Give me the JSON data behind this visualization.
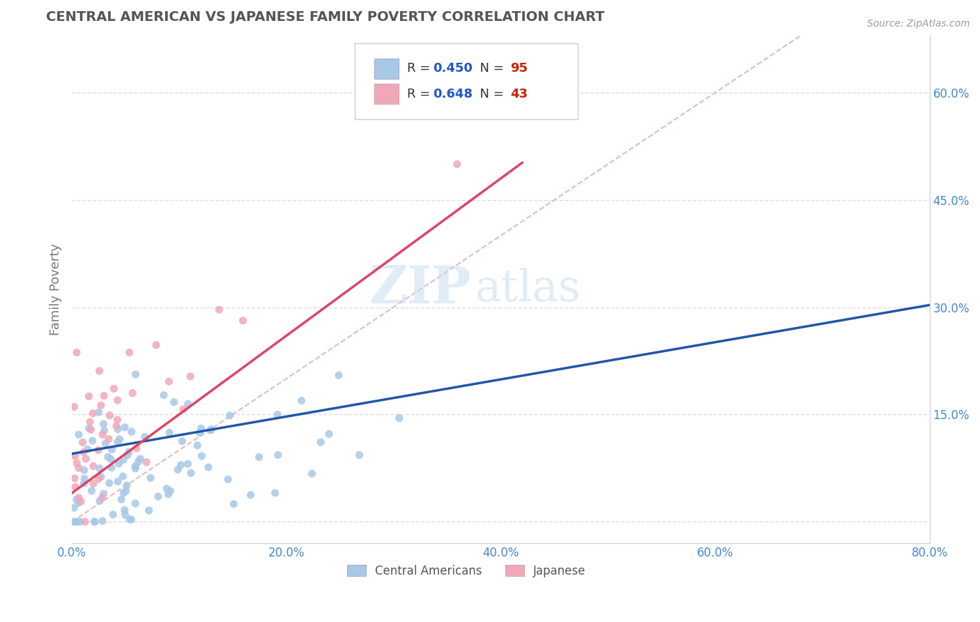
{
  "title": "CENTRAL AMERICAN VS JAPANESE FAMILY POVERTY CORRELATION CHART",
  "source": "Source: ZipAtlas.com",
  "ylabel": "Family Poverty",
  "xlim": [
    0.0,
    0.8
  ],
  "ylim": [
    -0.03,
    0.68
  ],
  "xtick_vals": [
    0.0,
    0.2,
    0.4,
    0.6,
    0.8
  ],
  "ytick_vals": [
    0.0,
    0.15,
    0.3,
    0.45,
    0.6
  ],
  "xtick_labels": [
    "0.0%",
    "20.0%",
    "40.0%",
    "60.0%",
    "80.0%"
  ],
  "ytick_labels": [
    "",
    "15.0%",
    "30.0%",
    "45.0%",
    "60.0%"
  ],
  "blue_color": "#a8c8e8",
  "pink_color": "#f0a8b8",
  "blue_line_color": "#2255aa",
  "pink_line_color": "#dd4466",
  "diag_color": "#ddaaaa",
  "R_blue": 0.45,
  "N_blue": 95,
  "R_pink": 0.648,
  "N_pink": 43,
  "legend_blue_label": "Central Americans",
  "legend_pink_label": "Japanese",
  "watermark_zip": "ZIP",
  "watermark_atlas": "atlas",
  "background_color": "#ffffff",
  "grid_color": "#dddddd",
  "tick_color": "#4488cc",
  "title_color": "#555555",
  "source_color": "#999999",
  "legend_r_color": "#2255cc",
  "legend_n_color": "#cc2200"
}
